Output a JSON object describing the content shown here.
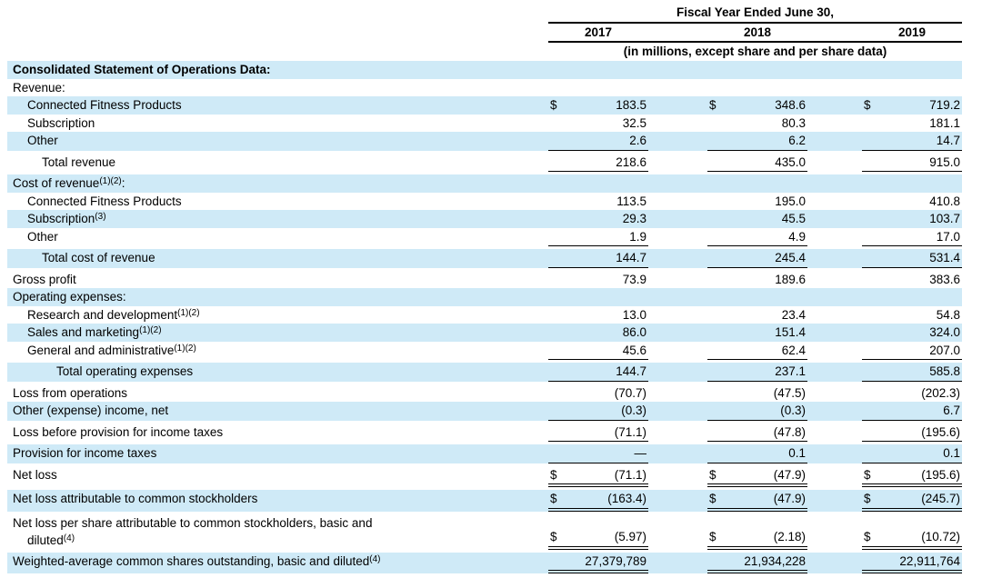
{
  "currency_symbol": "$",
  "colors": {
    "stripe": "#cfeaf7",
    "rule": "#000000",
    "text": "#000000"
  },
  "header": {
    "title": "Fiscal Year Ended June 30,",
    "years": [
      "2017",
      "2018",
      "2019"
    ],
    "subtitle": "(in millions, except share and per share data)"
  },
  "rows": [
    {
      "label": "Consolidated Statement of Operations Data:",
      "indent": 0,
      "bg": "blue",
      "bold": true,
      "values": null,
      "underline": "none"
    },
    {
      "label": "Revenue:",
      "indent": 0,
      "bg": "white",
      "values": null,
      "underline": "none"
    },
    {
      "label": "Connected Fitness Products",
      "indent": 1,
      "bg": "blue",
      "currency": true,
      "values": [
        "183.5",
        "348.6",
        "719.2"
      ],
      "underline": "none"
    },
    {
      "label": "Subscription",
      "indent": 1,
      "bg": "white",
      "values": [
        "32.5",
        "80.3",
        "181.1"
      ],
      "underline": "none"
    },
    {
      "label": "Other",
      "indent": 1,
      "bg": "blue",
      "values": [
        "2.6",
        "6.2",
        "14.7"
      ],
      "underline": "single"
    },
    {
      "label": "Total revenue",
      "indent": 2,
      "bg": "white",
      "values": [
        "218.6",
        "435.0",
        "915.0"
      ],
      "underline": "single"
    },
    {
      "label": "Cost of revenue",
      "sup": "(1)(2)",
      "suffix": ":",
      "indent": 0,
      "bg": "blue",
      "values": null,
      "underline": "none"
    },
    {
      "label": "Connected Fitness Products",
      "indent": 1,
      "bg": "white",
      "values": [
        "113.5",
        "195.0",
        "410.8"
      ],
      "underline": "none"
    },
    {
      "label": "Subscription",
      "sup": "(3)",
      "indent": 1,
      "bg": "blue",
      "values": [
        "29.3",
        "45.5",
        "103.7"
      ],
      "underline": "none"
    },
    {
      "label": "Other",
      "indent": 1,
      "bg": "white",
      "values": [
        "1.9",
        "4.9",
        "17.0"
      ],
      "underline": "single"
    },
    {
      "label": "Total cost of revenue",
      "indent": 2,
      "bg": "blue",
      "values": [
        "144.7",
        "245.4",
        "531.4"
      ],
      "underline": "single"
    },
    {
      "label": "Gross profit",
      "indent": 0,
      "bg": "white",
      "values": [
        "73.9",
        "189.6",
        "383.6"
      ],
      "underline": "none"
    },
    {
      "label": "Operating expenses:",
      "indent": 0,
      "bg": "blue",
      "values": null,
      "underline": "none"
    },
    {
      "label": "Research and development",
      "sup": "(1)(2)",
      "indent": 1,
      "bg": "white",
      "values": [
        "13.0",
        "23.4",
        "54.8"
      ],
      "underline": "none"
    },
    {
      "label": "Sales and marketing",
      "sup": "(1)(2)",
      "indent": 1,
      "bg": "blue",
      "values": [
        "86.0",
        "151.4",
        "324.0"
      ],
      "underline": "none"
    },
    {
      "label": "General and administrative",
      "sup": "(1)(2)",
      "indent": 1,
      "bg": "white",
      "values": [
        "45.6",
        "62.4",
        "207.0"
      ],
      "underline": "single"
    },
    {
      "label": "Total operating expenses",
      "indent": 3,
      "bg": "blue",
      "values": [
        "144.7",
        "237.1",
        "585.8"
      ],
      "underline": "single"
    },
    {
      "label": "Loss from operations",
      "indent": 0,
      "bg": "white",
      "values": [
        "(70.7)",
        "(47.5)",
        "(202.3)"
      ],
      "underline": "none"
    },
    {
      "label": "Other (expense) income, net",
      "indent": 0,
      "bg": "blue",
      "values": [
        "(0.3)",
        "(0.3)",
        "6.7"
      ],
      "underline": "single"
    },
    {
      "label": "Loss before provision for income taxes",
      "indent": 0,
      "bg": "white",
      "values": [
        "(71.1)",
        "(47.8)",
        "(195.6)"
      ],
      "underline": "single"
    },
    {
      "label": "Provision for income taxes",
      "indent": 0,
      "bg": "blue",
      "values": [
        "—",
        "0.1",
        "0.1"
      ],
      "underline": "single"
    },
    {
      "label": "Net loss",
      "indent": 0,
      "bg": "white",
      "currency": true,
      "values": [
        "(71.1)",
        "(47.9)",
        "(195.6)"
      ],
      "underline": "double"
    },
    {
      "label": "Net loss attributable to common stockholders",
      "indent": 0,
      "bg": "blue",
      "currency": true,
      "values": [
        "(163.4)",
        "(47.9)",
        "(245.7)"
      ],
      "underline": "double"
    },
    {
      "label": "Net loss per share attributable to common stockholders, basic and",
      "label2": "diluted",
      "sup2": "(4)",
      "indent": 0,
      "bg": "white",
      "currency": true,
      "values": [
        "(5.97)",
        "(2.18)",
        "(10.72)"
      ],
      "underline": "double"
    },
    {
      "label": "Weighted-average common shares outstanding, basic and diluted",
      "sup": "(4)",
      "indent": 0,
      "bg": "blue",
      "values": [
        "27,379,789",
        "21,934,228",
        "22,911,764"
      ],
      "underline": "double"
    }
  ]
}
